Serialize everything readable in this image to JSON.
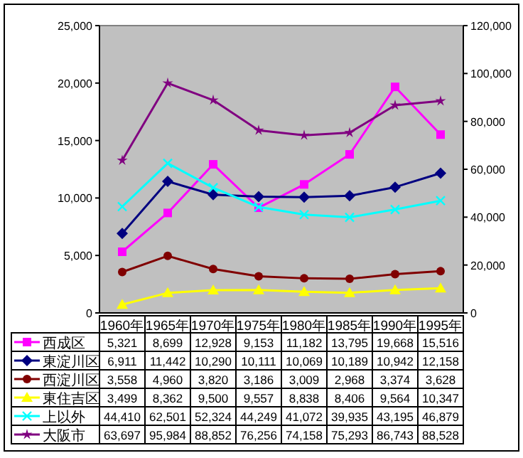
{
  "chart_data": {
    "type": "line",
    "categories": [
      "1960年",
      "1965年",
      "1970年",
      "1975年",
      "1980年",
      "1985年",
      "1990年",
      "1995年"
    ],
    "series": [
      {
        "name": "西成区",
        "color": "#ff00ff",
        "marker": "square",
        "values": [
          5321,
          8699,
          12928,
          9153,
          11182,
          13795,
          19668,
          15516
        ],
        "value_labels": [
          "5,321",
          "8,699",
          "12,928",
          "9,153",
          "11,182",
          "13,795",
          "19,668",
          "15,516"
        ]
      },
      {
        "name": "東淀川区",
        "color": "#000080",
        "marker": "diamond",
        "values": [
          6911,
          11442,
          10290,
          10111,
          10069,
          10189,
          10942,
          12158
        ],
        "value_labels": [
          "6,911",
          "11,442",
          "10,290",
          "10,111",
          "10,069",
          "10,189",
          "10,942",
          "12,158"
        ]
      },
      {
        "name": "西淀川区",
        "color": "#800000",
        "marker": "circle",
        "values": [
          3558,
          4960,
          3820,
          3186,
          3009,
          2968,
          3374,
          3628
        ],
        "value_labels": [
          "3,558",
          "4,960",
          "3,820",
          "3,186",
          "3,009",
          "2,968",
          "3,374",
          "3,628"
        ]
      },
      {
        "name": "東住吉区",
        "color": "#ffff00",
        "marker": "triangle",
        "axis": "y2",
        "values": [
          3499,
          8362,
          9500,
          9557,
          8838,
          8406,
          9564,
          10347
        ],
        "value_labels": [
          "3,499",
          "8,362",
          "9,500",
          "9,557",
          "8,838",
          "8,406",
          "9,564",
          "10,347"
        ]
      },
      {
        "name": "上以外",
        "color": "#00ffff",
        "marker": "cross",
        "axis": "y2",
        "values": [
          44410,
          62501,
          52324,
          44249,
          41072,
          39935,
          43195,
          46879
        ],
        "value_labels": [
          "44,410",
          "62,501",
          "52,324",
          "44,249",
          "41,072",
          "39,935",
          "43,195",
          "46,879"
        ]
      },
      {
        "name": "大阪市",
        "color": "#800080",
        "marker": "star",
        "axis": "y2",
        "values": [
          63697,
          95984,
          88852,
          76256,
          74158,
          75293,
          86743,
          88528
        ],
        "value_labels": [
          "63,697",
          "95,984",
          "88,852",
          "76,256",
          "74,158",
          "75,293",
          "86,743",
          "88,528"
        ]
      }
    ],
    "ylim": [
      0,
      25000
    ],
    "yticks": [
      0,
      {
        "value": 5000,
        "label": "5,000"
      },
      {
        "value": 10000,
        "label": "10,000"
      },
      {
        "value": 15000,
        "label": "15,000"
      },
      {
        "value": 20000,
        "label": "20,000"
      },
      {
        "value": 25000,
        "label": "25,000"
      }
    ],
    "y2lim": [
      0,
      120000
    ],
    "y2ticks": [
      0,
      {
        "value": 20000,
        "label": "20,000"
      },
      {
        "value": 40000,
        "label": "40,000"
      },
      {
        "value": 60000,
        "label": "60,000"
      },
      {
        "value": 80000,
        "label": "80,000"
      },
      {
        "value": 100000,
        "label": "100,000"
      },
      {
        "value": 120000,
        "label": "120,000"
      }
    ],
    "grid": false,
    "legend": "bottom"
  }
}
